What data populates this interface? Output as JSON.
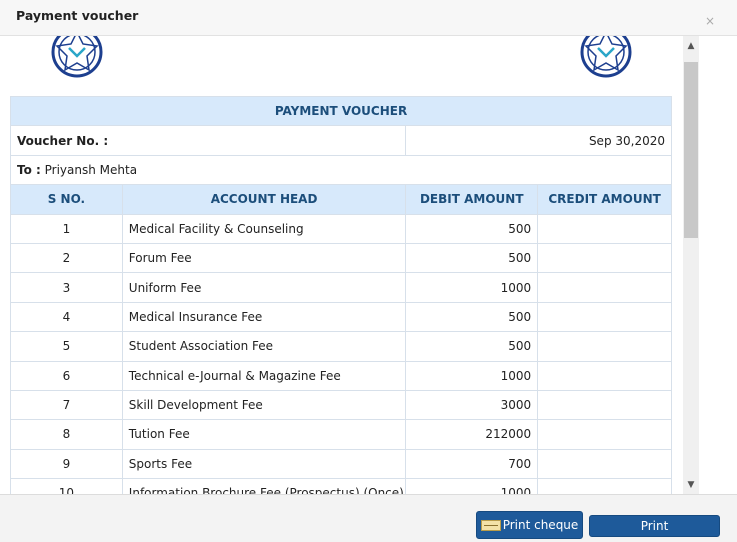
{
  "dialog": {
    "title": "Payment voucher",
    "close_glyph": "×"
  },
  "voucher": {
    "banner": "PAYMENT VOUCHER",
    "voucher_no_label": "Voucher No. :",
    "voucher_no_value": "",
    "date": "Sep 30,2020",
    "to_label": "To :",
    "to_value": "Priyansh Mehta",
    "columns": [
      "S NO.",
      "ACCOUNT HEAD",
      "DEBIT AMOUNT",
      "CREDIT AMOUNT"
    ],
    "rows": [
      {
        "sno": "1",
        "head": "Medical Facility & Counseling",
        "debit": "500",
        "credit": ""
      },
      {
        "sno": "2",
        "head": "Forum Fee",
        "debit": "500",
        "credit": ""
      },
      {
        "sno": "3",
        "head": "Uniform Fee",
        "debit": "1000",
        "credit": ""
      },
      {
        "sno": "4",
        "head": "Medical Insurance Fee",
        "debit": "500",
        "credit": ""
      },
      {
        "sno": "5",
        "head": "Student Association Fee",
        "debit": "500",
        "credit": ""
      },
      {
        "sno": "6",
        "head": "Technical e-Journal & Magazine Fee",
        "debit": "1000",
        "credit": ""
      },
      {
        "sno": "7",
        "head": "Skill Development Fee",
        "debit": "3000",
        "credit": ""
      },
      {
        "sno": "8",
        "head": "Tution Fee",
        "debit": "212000",
        "credit": ""
      },
      {
        "sno": "9",
        "head": "Sports Fee",
        "debit": "700",
        "credit": ""
      },
      {
        "sno": "10",
        "head": "Information Brochure Fee (Prospectus) (Once)",
        "debit": "1000",
        "credit": ""
      }
    ]
  },
  "icons": {
    "logo": "institution-emblem-icon",
    "close": "close-icon",
    "cheque": "cheque-icon",
    "scroll_up": "scroll-up-icon",
    "scroll_down": "scroll-down-icon"
  },
  "colors": {
    "header_bg": "#d7e9fb",
    "header_text": "#1c4e7b",
    "button_bg": "#1e5a9a",
    "logo_blue": "#1d3f8f",
    "logo_teal": "#2aa6c8"
  },
  "footer": {
    "print_cheque_label": "Print cheque",
    "print_label": "Print"
  }
}
